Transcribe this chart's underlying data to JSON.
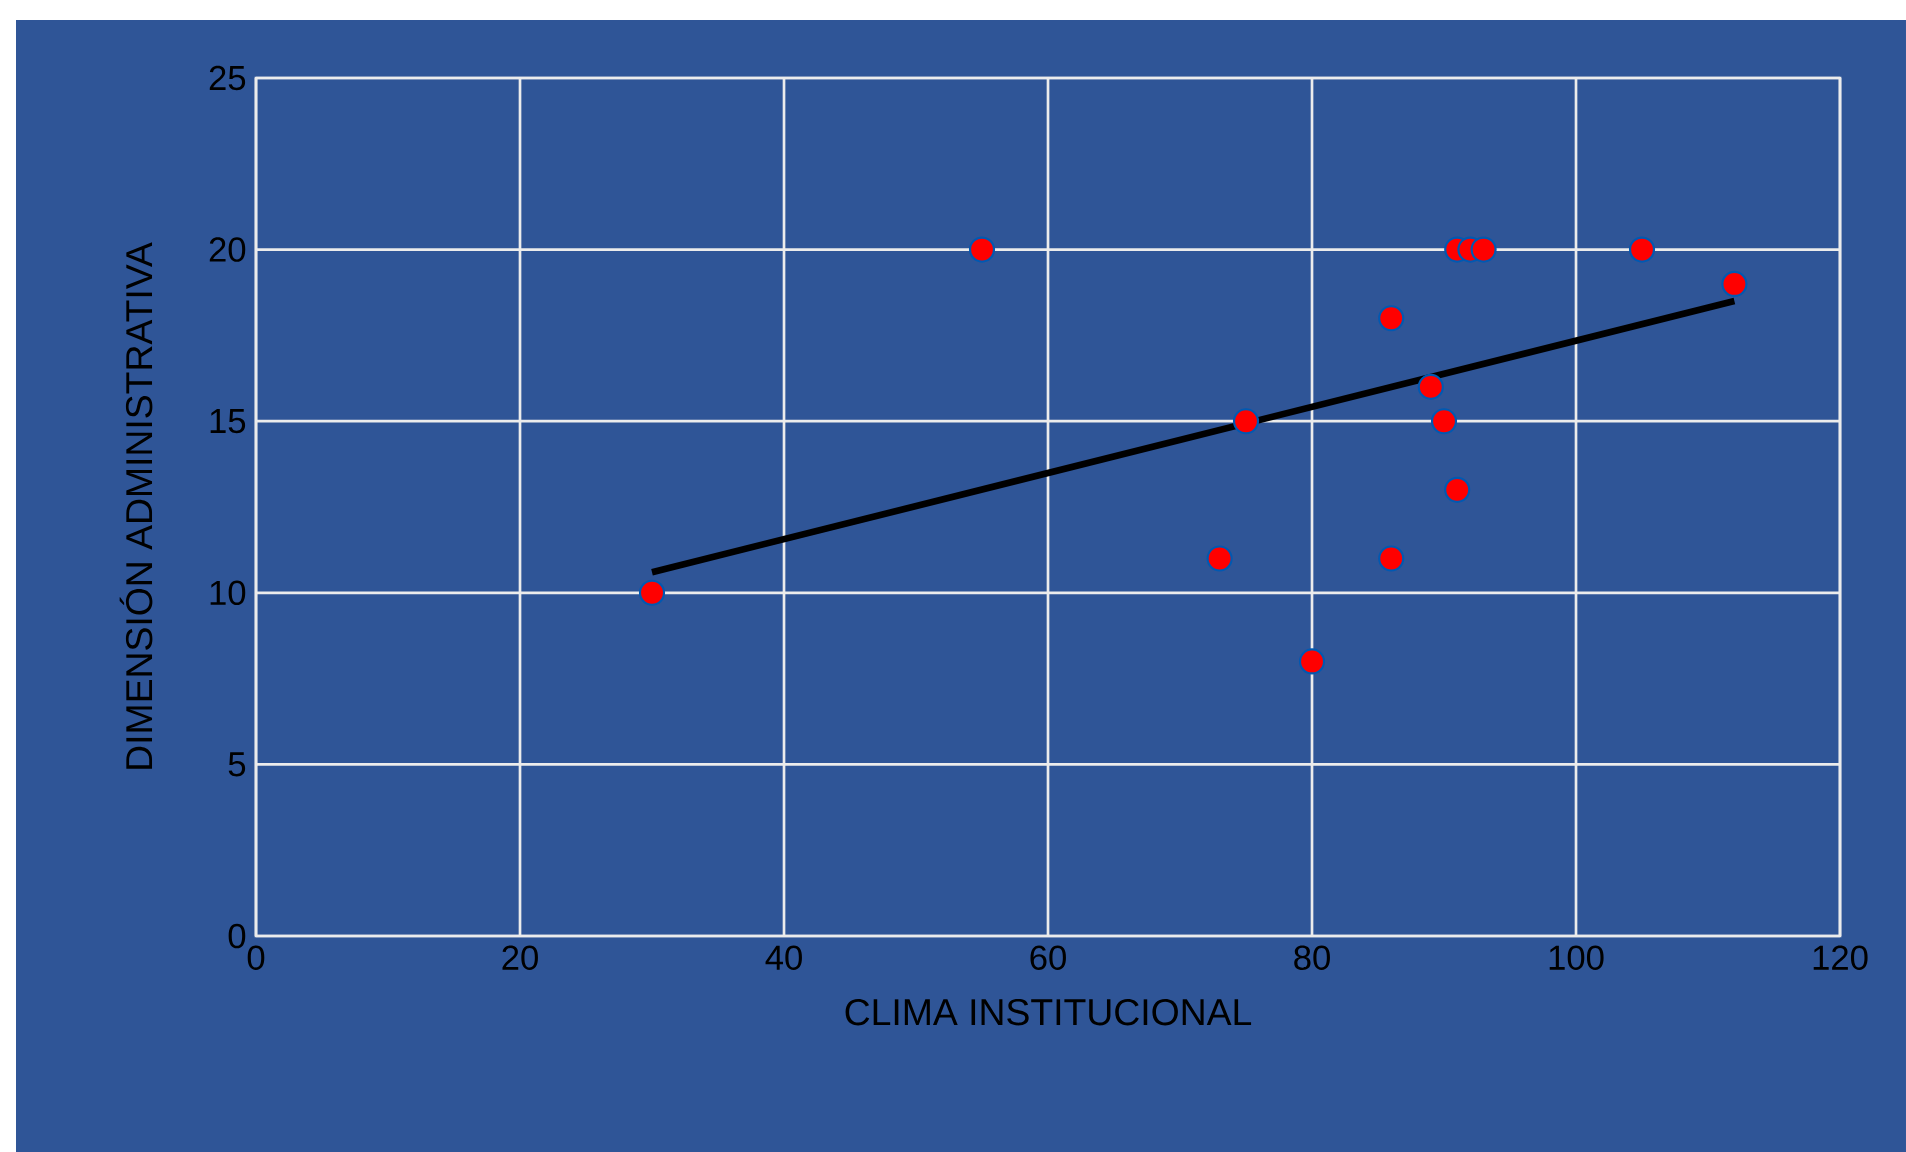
{
  "chart_data": {
    "type": "scatter",
    "xlabel": "CLIMA INSTITUCIONAL",
    "ylabel": "DIMENSIÓN ADMINISTRATIVA",
    "xlim": [
      0,
      120
    ],
    "xticks": [
      0,
      20,
      40,
      60,
      80,
      100,
      120
    ],
    "ylim": [
      0,
      25
    ],
    "yticks": [
      0,
      5,
      10,
      15,
      20,
      25
    ],
    "grid": true,
    "series": [
      {
        "marker": "circle",
        "color": "#ff0000",
        "x": [
          30,
          55,
          73,
          75,
          80,
          86,
          86,
          89,
          90,
          91,
          91,
          92,
          93,
          105,
          112
        ],
        "values": [
          10,
          20,
          11,
          15,
          8,
          18,
          11,
          16,
          15,
          13,
          20,
          20,
          20,
          20,
          19
        ]
      },
      {
        "type": "line",
        "color": "#000000",
        "x": [
          30,
          112
        ],
        "values": [
          10.6,
          18.5
        ]
      }
    ]
  }
}
